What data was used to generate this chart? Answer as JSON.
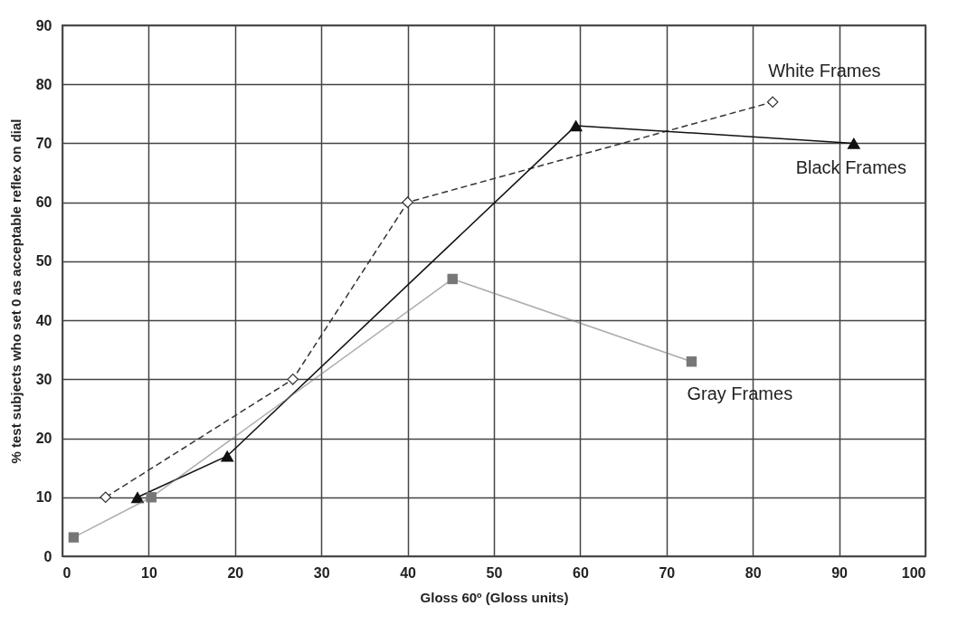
{
  "chart_data": {
    "type": "line",
    "xlabel": "Gloss 60º (Gloss units)",
    "ylabel": "% test subjects who set 0 as acceptable reflex on dial",
    "xlim": [
      0,
      100
    ],
    "xticks": [
      0,
      10,
      20,
      30,
      40,
      50,
      60,
      70,
      80,
      90,
      100
    ],
    "ylim": [
      0,
      90
    ],
    "yticks": [
      0,
      10,
      20,
      30,
      40,
      50,
      60,
      70,
      80,
      90
    ],
    "grid": true,
    "series": [
      {
        "name": "White Frames",
        "color": "#333333",
        "marker": "diamond",
        "line_style": "dashed",
        "x": [
          5,
          26.7,
          40,
          82.3
        ],
        "values": [
          10,
          30,
          60,
          77
        ]
      },
      {
        "name": "Black Frames",
        "color": "#111111",
        "marker": "triangle",
        "line_style": "solid",
        "x": [
          8.7,
          19.1,
          59.5,
          91.7
        ],
        "values": [
          10,
          17,
          73,
          70
        ]
      },
      {
        "name": "Gray Frames",
        "color": "#777777",
        "marker": "square",
        "line_style": "solid",
        "x": [
          1.3,
          10.3,
          45.2,
          72.9
        ],
        "values": [
          3.2,
          10,
          47,
          33
        ]
      }
    ]
  }
}
